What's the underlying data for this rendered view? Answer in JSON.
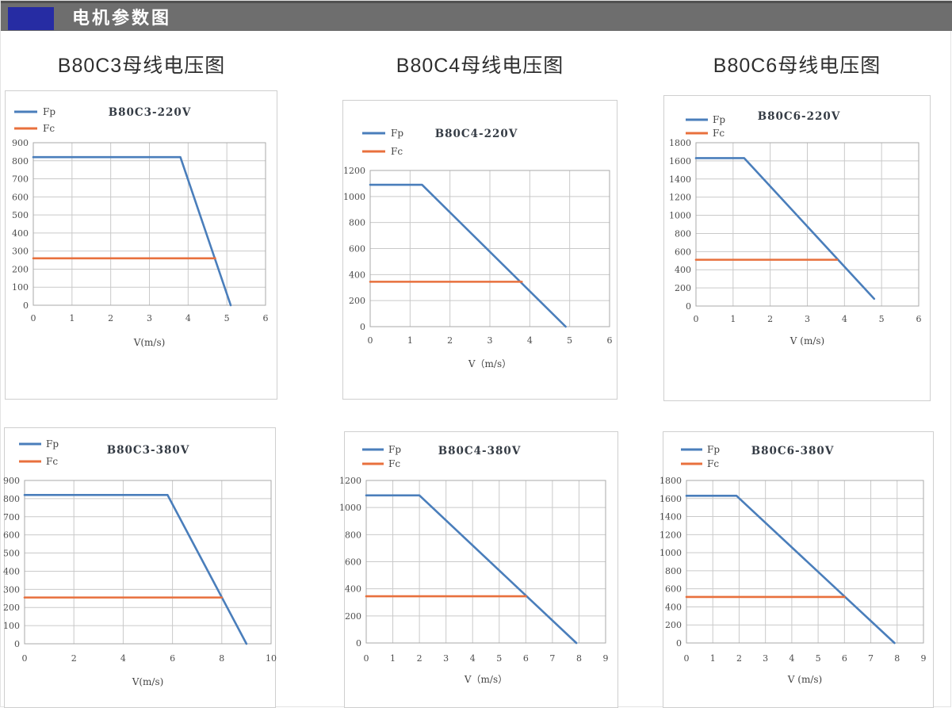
{
  "header": {
    "title": "电机参数图",
    "bar_color": "#6e6e6e",
    "accent_color": "#262ca3"
  },
  "sections": [
    {
      "title": "B80C3母线电压图"
    },
    {
      "title": "B80C4母线电压图"
    },
    {
      "title": "B80C6母线电压图"
    }
  ],
  "colors": {
    "fp_line": "#4a7ebb",
    "fc_line": "#e8703d",
    "gridline": "#c9c9c9"
  },
  "chart_data": [
    {
      "type": "line",
      "title": "B80C3-220V",
      "xlabel": "V(m/s)",
      "xlim": [
        0,
        6
      ],
      "ylim": [
        0,
        900
      ],
      "xticks": [
        0,
        1,
        2,
        3,
        4,
        5,
        6
      ],
      "yticks": [
        0,
        100,
        200,
        300,
        400,
        500,
        600,
        700,
        800,
        900
      ],
      "grid": true,
      "legend_position": "top-left",
      "series": [
        {
          "name": "Fp",
          "color": "#4a7ebb",
          "points": [
            [
              0,
              820
            ],
            [
              3.8,
              820
            ],
            [
              5.1,
              0
            ]
          ]
        },
        {
          "name": "Fc",
          "color": "#e8703d",
          "points": [
            [
              0,
              260
            ],
            [
              4.7,
              260
            ]
          ]
        }
      ]
    },
    {
      "type": "line",
      "title": "B80C4-220V",
      "xlabel": "V（m/s）",
      "xlim": [
        0,
        6
      ],
      "ylim": [
        0,
        1200
      ],
      "xticks": [
        0,
        1,
        2,
        3,
        4,
        5,
        6
      ],
      "yticks": [
        0,
        200,
        400,
        600,
        800,
        1000,
        1200
      ],
      "grid": true,
      "legend_position": "top-left",
      "series": [
        {
          "name": "Fp",
          "color": "#4a7ebb",
          "points": [
            [
              0,
              1090
            ],
            [
              1.3,
              1090
            ],
            [
              4.9,
              0
            ]
          ]
        },
        {
          "name": "Fc",
          "color": "#e8703d",
          "points": [
            [
              0,
              345
            ],
            [
              3.8,
              345
            ]
          ]
        }
      ]
    },
    {
      "type": "line",
      "title": "B80C6-220V",
      "xlabel": "V (m/s)",
      "xlim": [
        0,
        6
      ],
      "ylim": [
        0,
        1800
      ],
      "xticks": [
        0,
        1,
        2,
        3,
        4,
        5,
        6
      ],
      "yticks": [
        0,
        200,
        400,
        600,
        800,
        1000,
        1200,
        1400,
        1600,
        1800
      ],
      "grid": true,
      "legend_position": "top-left",
      "series": [
        {
          "name": "Fp",
          "color": "#4a7ebb",
          "points": [
            [
              0,
              1630
            ],
            [
              1.3,
              1630
            ],
            [
              4.8,
              80
            ]
          ]
        },
        {
          "name": "Fc",
          "color": "#e8703d",
          "points": [
            [
              0,
              510
            ],
            [
              3.8,
              510
            ]
          ]
        }
      ]
    },
    {
      "type": "line",
      "title": "B80C3-380V",
      "xlabel": "V(m/s)",
      "xlim": [
        0,
        10
      ],
      "ylim": [
        0,
        900
      ],
      "xticks": [
        0,
        2,
        4,
        6,
        8,
        10
      ],
      "yticks": [
        0,
        100,
        200,
        300,
        400,
        500,
        600,
        700,
        800,
        900
      ],
      "grid": true,
      "legend_position": "top-left",
      "series": [
        {
          "name": "Fp",
          "color": "#4a7ebb",
          "points": [
            [
              0,
              820
            ],
            [
              5.8,
              820
            ],
            [
              9,
              0
            ]
          ]
        },
        {
          "name": "Fc",
          "color": "#e8703d",
          "points": [
            [
              0,
              255
            ],
            [
              8,
              255
            ]
          ]
        }
      ]
    },
    {
      "type": "line",
      "title": "B80C4-380V",
      "xlabel": "V（m/s）",
      "xlim": [
        0,
        9
      ],
      "ylim": [
        0,
        1200
      ],
      "xticks": [
        0,
        1,
        2,
        3,
        4,
        5,
        6,
        7,
        8,
        9
      ],
      "yticks": [
        0,
        200,
        400,
        600,
        800,
        1000,
        1200
      ],
      "grid": true,
      "legend_position": "top-left",
      "series": [
        {
          "name": "Fp",
          "color": "#4a7ebb",
          "points": [
            [
              0,
              1090
            ],
            [
              2,
              1090
            ],
            [
              7.9,
              0
            ]
          ]
        },
        {
          "name": "Fc",
          "color": "#e8703d",
          "points": [
            [
              0,
              345
            ],
            [
              6,
              345
            ]
          ]
        }
      ]
    },
    {
      "type": "line",
      "title": "B80C6-380V",
      "xlabel": "V (m/s)",
      "xlim": [
        0,
        9
      ],
      "ylim": [
        0,
        1800
      ],
      "xticks": [
        0,
        1,
        2,
        3,
        4,
        5,
        6,
        7,
        8,
        9
      ],
      "yticks": [
        0,
        200,
        400,
        600,
        800,
        1000,
        1200,
        1400,
        1600,
        1800
      ],
      "grid": true,
      "legend_position": "top-left",
      "series": [
        {
          "name": "Fp",
          "color": "#4a7ebb",
          "points": [
            [
              0,
              1630
            ],
            [
              1.9,
              1630
            ],
            [
              7.9,
              0
            ]
          ]
        },
        {
          "name": "Fc",
          "color": "#e8703d",
          "points": [
            [
              0,
              510
            ],
            [
              6,
              510
            ]
          ]
        }
      ]
    }
  ]
}
